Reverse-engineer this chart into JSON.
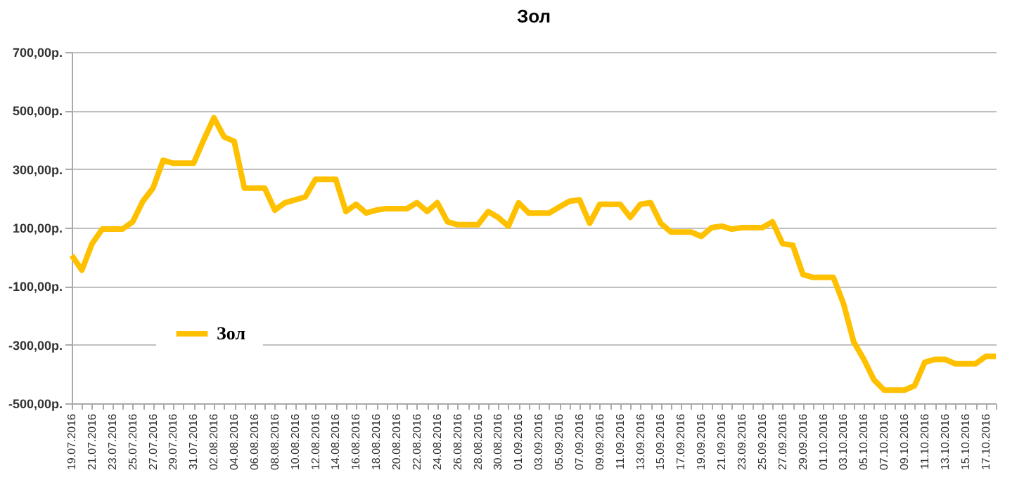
{
  "chart_data": {
    "type": "line",
    "title": "Зол",
    "categories": [
      "19.07.2016",
      null,
      "21.07.2016",
      null,
      "23.07.2016",
      null,
      "25.07.2016",
      null,
      "27.07.2016",
      null,
      "29.07.2016",
      null,
      "31.07.2016",
      null,
      "02.08.2016",
      null,
      "04.08.2016",
      null,
      "06.08.2016",
      null,
      "08.08.2016",
      null,
      "10.08.2016",
      null,
      "12.08.2016",
      null,
      "14.08.2016",
      null,
      "16.08.2016",
      null,
      "18.08.2016",
      null,
      "20.08.2016",
      null,
      "22.08.2016",
      null,
      "24.08.2016",
      null,
      "26.08.2016",
      null,
      "28.08.2016",
      null,
      "30.08.2016",
      null,
      "01.09.2016",
      null,
      "03.09.2016",
      null,
      "05.09.2016",
      null,
      "07.09.2016",
      null,
      "09.09.2016",
      null,
      "11.09.2016",
      null,
      "13.09.2016",
      null,
      "15.09.2016",
      null,
      "17.09.2016",
      null,
      "19.09.2016",
      null,
      "21.09.2016",
      null,
      "23.09.2016",
      null,
      "25.09.2016",
      null,
      "27.09.2016",
      null,
      "29.09.2016",
      null,
      "01.10.2016",
      null,
      "03.10.2016",
      null,
      "05.10.2016",
      null,
      "07.10.2016",
      null,
      "09.10.2016",
      null,
      "11.10.2016",
      null,
      "13.10.2016",
      null,
      "15.10.2016",
      null,
      "17.10.2016",
      null
    ],
    "series": [
      {
        "name": "Зол",
        "color": "#ffc000",
        "values": [
          5,
          -45,
          45,
          95,
          95,
          95,
          120,
          190,
          235,
          330,
          320,
          320,
          320,
          400,
          475,
          410,
          395,
          235,
          235,
          235,
          160,
          185,
          195,
          205,
          265,
          265,
          265,
          155,
          180,
          150,
          160,
          165,
          165,
          165,
          185,
          155,
          185,
          120,
          110,
          110,
          110,
          155,
          135,
          105,
          185,
          150,
          150,
          150,
          170,
          190,
          195,
          115,
          180,
          180,
          180,
          135,
          180,
          185,
          115,
          85,
          85,
          85,
          70,
          100,
          105,
          95,
          100,
          100,
          100,
          120,
          45,
          40,
          -60,
          -70,
          -70,
          -70,
          -160,
          -290,
          -350,
          -420,
          -455,
          -455,
          -455,
          -440,
          -360,
          -350,
          -350,
          -365,
          -365,
          -365,
          -340,
          -340
        ]
      }
    ],
    "ylim": [
      -500,
      700
    ],
    "yticks": [
      {
        "value": -500,
        "label": "-500,00р."
      },
      {
        "value": -300,
        "label": "-300,00р."
      },
      {
        "value": -100,
        "label": "-100,00р."
      },
      {
        "value": 100,
        "label": "100,00р."
      },
      {
        "value": 300,
        "label": "300,00р."
      },
      {
        "value": 500,
        "label": "500,00р."
      },
      {
        "value": 700,
        "label": "700,00р."
      }
    ],
    "grid": "y",
    "legend": "left",
    "marker": "none",
    "line_style": "solid"
  }
}
